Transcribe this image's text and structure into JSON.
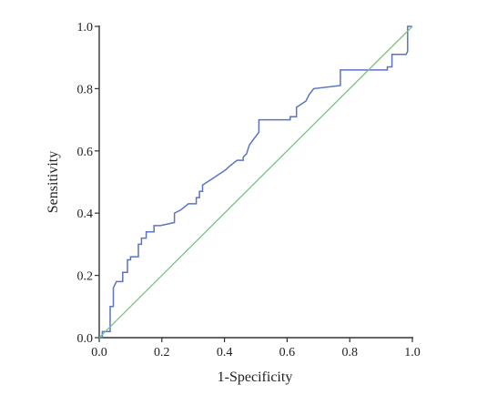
{
  "chart_data": {
    "type": "line",
    "title": "",
    "xlabel": "1-Specificity",
    "ylabel": "Sensitivity",
    "xlim": [
      0,
      1
    ],
    "ylim": [
      0,
      1
    ],
    "xticks": [
      "0.0",
      "0.2",
      "0.4",
      "0.6",
      "0.8",
      "1.0"
    ],
    "yticks": [
      "0.0",
      "0.2",
      "0.4",
      "0.6",
      "0.8",
      "1.0"
    ],
    "xtick_values": [
      0,
      0.2,
      0.4,
      0.6,
      0.8,
      1.0
    ],
    "ytick_values": [
      0,
      0.2,
      0.4,
      0.6,
      0.8,
      1.0
    ],
    "grid": false,
    "legend": "none",
    "series": [
      {
        "color": "#5b74c0",
        "step": true,
        "x": [
          0,
          0.01,
          0.01,
          0.035,
          0.035,
          0.045,
          0.045,
          0.055,
          0.06,
          0.075,
          0.075,
          0.09,
          0.09,
          0.1,
          0.1,
          0.125,
          0.125,
          0.135,
          0.135,
          0.15,
          0.15,
          0.175,
          0.175,
          0.195,
          0.24,
          0.24,
          0.26,
          0.285,
          0.285,
          0.31,
          0.31,
          0.32,
          0.32,
          0.33,
          0.33,
          0.36,
          0.39,
          0.405,
          0.415,
          0.44,
          0.46,
          0.46,
          0.47,
          0.48,
          0.495,
          0.51,
          0.51,
          0.525,
          0.61,
          0.61,
          0.63,
          0.63,
          0.645,
          0.66,
          0.67,
          0.685,
          0.77,
          0.77,
          0.79,
          0.92,
          0.92,
          0.935,
          0.935,
          0.98,
          0.985,
          0.985,
          1.0
        ],
        "y": [
          0,
          0,
          0.02,
          0.02,
          0.1,
          0.1,
          0.16,
          0.18,
          0.18,
          0.18,
          0.21,
          0.21,
          0.25,
          0.25,
          0.26,
          0.26,
          0.3,
          0.3,
          0.32,
          0.32,
          0.34,
          0.34,
          0.36,
          0.36,
          0.37,
          0.4,
          0.41,
          0.43,
          0.43,
          0.43,
          0.45,
          0.45,
          0.47,
          0.47,
          0.49,
          0.51,
          0.53,
          0.54,
          0.55,
          0.57,
          0.57,
          0.58,
          0.59,
          0.62,
          0.64,
          0.66,
          0.7,
          0.7,
          0.7,
          0.71,
          0.71,
          0.74,
          0.75,
          0.76,
          0.78,
          0.8,
          0.81,
          0.86,
          0.86,
          0.86,
          0.87,
          0.87,
          0.91,
          0.91,
          0.92,
          1.0,
          1.0
        ]
      },
      {
        "color": "#7cc27c",
        "x": [
          0,
          1
        ],
        "y": [
          0,
          1
        ]
      }
    ]
  }
}
